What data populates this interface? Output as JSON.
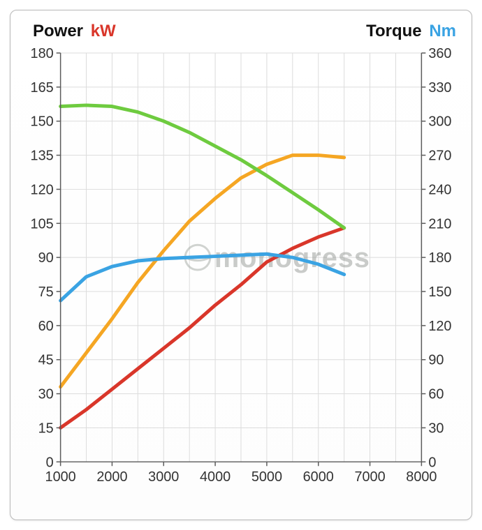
{
  "chart": {
    "type": "line",
    "titles": {
      "left_label": "Power",
      "left_unit": "kW",
      "right_label": "Torque",
      "right_unit": "Nm"
    },
    "title_fontsize": 24,
    "watermark": {
      "text": "monogress",
      "color": "#8a8f8a",
      "opacity": 0.45,
      "fontsize": 40,
      "icon_color": "#9aa09a"
    },
    "background_color": "#ffffff",
    "panel_border_color": "#b8b8b8",
    "grid_color": "#dcdcdc",
    "axis_line_color": "#5b5b5b",
    "axis_label_color": "#333333",
    "axis_label_fontsize": 20,
    "x_axis": {
      "min": 1000,
      "max": 8000,
      "tick_step": 1000,
      "ticks": [
        1000,
        2000,
        3000,
        4000,
        5000,
        6000,
        7000,
        8000
      ],
      "minor_per_major": 2
    },
    "y_left": {
      "label": "kW",
      "label_color": "#d9362a",
      "min": 0,
      "max": 180,
      "tick_step": 15,
      "ticks": [
        0,
        15,
        30,
        45,
        60,
        75,
        90,
        105,
        120,
        135,
        150,
        165,
        180
      ]
    },
    "y_right": {
      "label": "Nm",
      "label_color": "#3aa3e3",
      "min": 0,
      "max": 360,
      "tick_step": 30,
      "ticks": [
        0,
        30,
        60,
        90,
        120,
        150,
        180,
        210,
        240,
        270,
        300,
        330,
        360
      ]
    },
    "line_width": 5,
    "series": [
      {
        "name": "power_red",
        "axis": "left",
        "color": "#d9362a",
        "data": [
          {
            "x": 1000,
            "y": 15
          },
          {
            "x": 1500,
            "y": 23
          },
          {
            "x": 2000,
            "y": 32
          },
          {
            "x": 2500,
            "y": 41
          },
          {
            "x": 3000,
            "y": 50
          },
          {
            "x": 3500,
            "y": 59
          },
          {
            "x": 4000,
            "y": 69
          },
          {
            "x": 4500,
            "y": 78
          },
          {
            "x": 5000,
            "y": 88
          },
          {
            "x": 5500,
            "y": 94
          },
          {
            "x": 6000,
            "y": 99
          },
          {
            "x": 6500,
            "y": 103
          }
        ]
      },
      {
        "name": "power_orange",
        "axis": "left",
        "color": "#f5a623",
        "data": [
          {
            "x": 1000,
            "y": 33
          },
          {
            "x": 1500,
            "y": 48
          },
          {
            "x": 2000,
            "y": 63
          },
          {
            "x": 2500,
            "y": 79
          },
          {
            "x": 3000,
            "y": 93
          },
          {
            "x": 3500,
            "y": 106
          },
          {
            "x": 4000,
            "y": 116
          },
          {
            "x": 4500,
            "y": 125
          },
          {
            "x": 5000,
            "y": 131
          },
          {
            "x": 5500,
            "y": 135
          },
          {
            "x": 6000,
            "y": 135
          },
          {
            "x": 6500,
            "y": 134
          }
        ]
      },
      {
        "name": "torque_blue",
        "axis": "right",
        "color": "#3aa3e3",
        "data": [
          {
            "x": 1000,
            "y": 142
          },
          {
            "x": 1500,
            "y": 163
          },
          {
            "x": 2000,
            "y": 172
          },
          {
            "x": 2500,
            "y": 177
          },
          {
            "x": 3000,
            "y": 179
          },
          {
            "x": 3500,
            "y": 180
          },
          {
            "x": 4000,
            "y": 181
          },
          {
            "x": 4500,
            "y": 182
          },
          {
            "x": 5000,
            "y": 183
          },
          {
            "x": 5500,
            "y": 180
          },
          {
            "x": 6000,
            "y": 174
          },
          {
            "x": 6500,
            "y": 165
          }
        ]
      },
      {
        "name": "torque_green",
        "axis": "right",
        "color": "#6ecb3f",
        "data": [
          {
            "x": 1000,
            "y": 313
          },
          {
            "x": 1500,
            "y": 314
          },
          {
            "x": 2000,
            "y": 313
          },
          {
            "x": 2500,
            "y": 308
          },
          {
            "x": 3000,
            "y": 300
          },
          {
            "x": 3500,
            "y": 290
          },
          {
            "x": 4000,
            "y": 278
          },
          {
            "x": 4500,
            "y": 266
          },
          {
            "x": 5000,
            "y": 252
          },
          {
            "x": 5500,
            "y": 237
          },
          {
            "x": 6000,
            "y": 222
          },
          {
            "x": 6500,
            "y": 206
          }
        ]
      }
    ]
  }
}
